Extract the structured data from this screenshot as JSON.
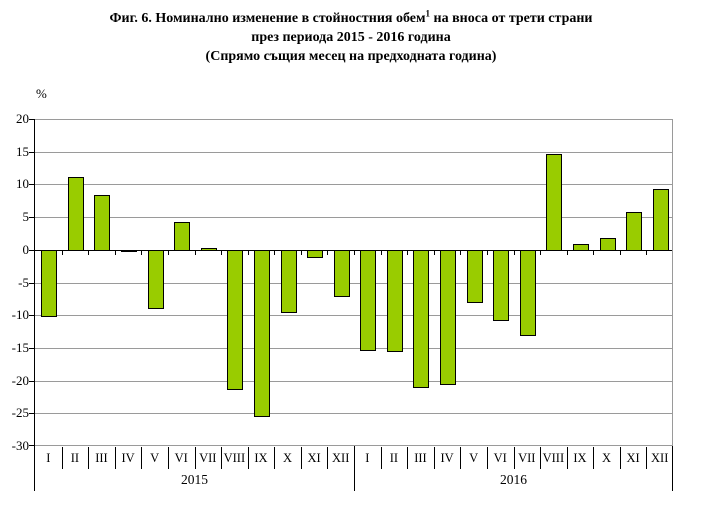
{
  "figure": {
    "title_line1_pre": "Фиг. 6. Номинално изменение в стойностния обем",
    "title_line1_sup": "1",
    "title_line1_post": " на вноса от трети страни",
    "title_line2": "през периода 2015 - 2016 година",
    "title_line3": "(Спрямо същия месец на предходната година)"
  },
  "chart_data": {
    "type": "bar",
    "ylabel": "%",
    "ylim": [
      -30,
      20
    ],
    "ytick_step": 5,
    "yticks": [
      20,
      15,
      10,
      5,
      0,
      -5,
      -10,
      -15,
      -20,
      -25,
      -30
    ],
    "grid": true,
    "legend_position": "none",
    "bar_color": "#99CC00",
    "bar_border_color": "#000000",
    "gridline_color": "#9a9a9a",
    "axis_color": "#000000",
    "groups": [
      {
        "year": "2015",
        "months": [
          "I",
          "II",
          "III",
          "IV",
          "V",
          "VI",
          "VII",
          "VIII",
          "IX",
          "X",
          "XI",
          "XII"
        ],
        "values": [
          -10.3,
          11.3,
          8.6,
          -0.1,
          -9.0,
          4.4,
          0.1,
          -21.5,
          -25.5,
          -9.7,
          -1.2,
          -7.2
        ]
      },
      {
        "year": "2016",
        "months": [
          "I",
          "II",
          "III",
          "IV",
          "V",
          "VI",
          "VII",
          "VIII",
          "IX",
          "X",
          "XI",
          "XII"
        ],
        "values": [
          -15.4,
          -15.6,
          -21.1,
          -20.6,
          -8.1,
          -10.9,
          -13.2,
          14.8,
          1.0,
          2.0,
          5.9,
          9.4
        ]
      }
    ]
  }
}
